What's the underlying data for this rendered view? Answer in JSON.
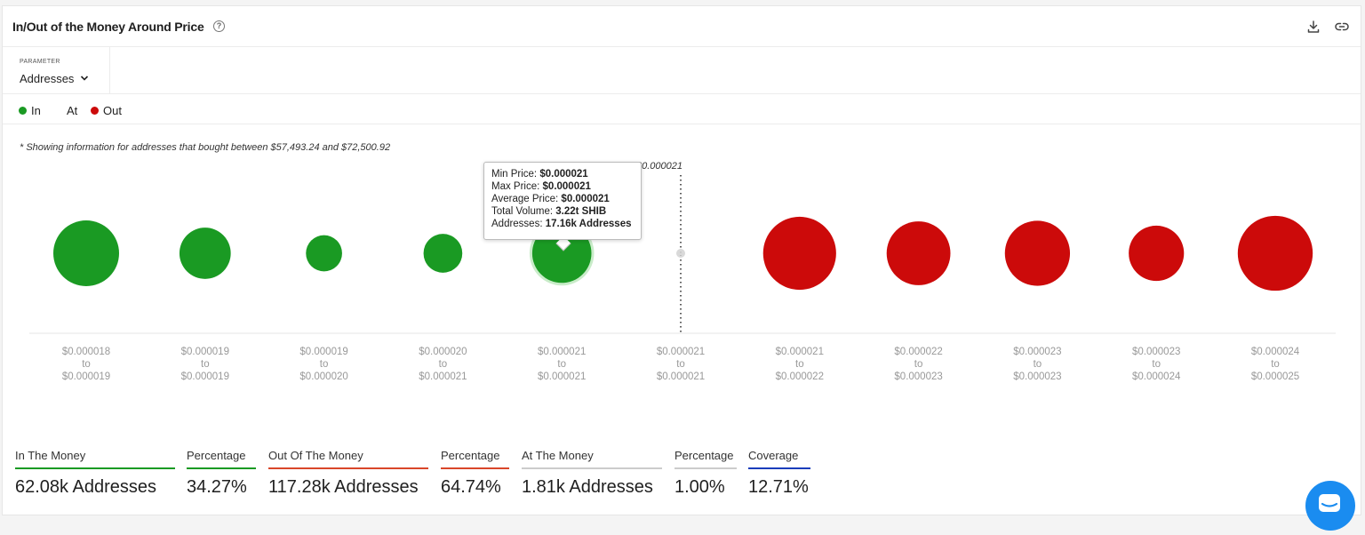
{
  "header": {
    "title": "In/Out of the Money Around Price",
    "help_icon": "?"
  },
  "parameter": {
    "label": "PARAMETER",
    "value": "Addresses"
  },
  "legend": [
    {
      "label": "In",
      "color": "#1a9a23"
    },
    {
      "label": "At",
      "color": ""
    },
    {
      "label": "Out",
      "color": "#cc0a0a"
    }
  ],
  "note": "* Showing information for addresses that bought between $57,493.24 and $72,500.92",
  "current_price_label": "$0.000021",
  "tooltip": {
    "min_label": "Min Price:",
    "min_value": "$0.000021",
    "max_label": "Max Price:",
    "max_value": "$0.000021",
    "avg_label": "Average Price:",
    "avg_value": "$0.000021",
    "vol_label": "Total Volume:",
    "vol_value": "3.22t SHIB",
    "addr_label": "Addresses:",
    "addr_value": "17.16k Addresses"
  },
  "chart_data": {
    "type": "bubble",
    "title": "In/Out of the Money Around Price",
    "parameter": "Addresses",
    "current_price": "$0.000021",
    "buckets": [
      {
        "from": "$0.000018",
        "to": "$0.000019",
        "status": "in",
        "relative_size": 1.0
      },
      {
        "from": "$0.000019",
        "to": "$0.000019",
        "status": "in",
        "relative_size": 0.78
      },
      {
        "from": "$0.000019",
        "to": "$0.000020",
        "status": "in",
        "relative_size": 0.55
      },
      {
        "from": "$0.000020",
        "to": "$0.000021",
        "status": "in",
        "relative_size": 0.59
      },
      {
        "from": "$0.000021",
        "to": "$0.000021",
        "status": "in",
        "relative_size": 0.9,
        "addresses": "17.16k",
        "volume": "3.22t SHIB",
        "highlighted": true
      },
      {
        "from": "$0.000021",
        "to": "$0.000021",
        "status": "at",
        "relative_size": 0.13
      },
      {
        "from": "$0.000021",
        "to": "$0.000022",
        "status": "out",
        "relative_size": 1.11
      },
      {
        "from": "$0.000022",
        "to": "$0.000023",
        "status": "out",
        "relative_size": 0.97
      },
      {
        "from": "$0.000023",
        "to": "$0.000023",
        "status": "out",
        "relative_size": 0.99
      },
      {
        "from": "$0.000023",
        "to": "$0.000024",
        "status": "out",
        "relative_size": 0.84
      },
      {
        "from": "$0.000024",
        "to": "$0.000025",
        "status": "out",
        "relative_size": 1.14
      }
    ],
    "connector": "to",
    "colors": {
      "in": "#1a9a23",
      "out": "#cc0a0a",
      "at": "#d9d9d9"
    }
  },
  "stats": [
    {
      "label": "In The Money",
      "value": "62.08k Addresses",
      "color": "#1a9a23"
    },
    {
      "label": "Percentage",
      "value": "34.27%",
      "color": "#1a9a23"
    },
    {
      "label": "Out Of The Money",
      "value": "117.28k Addresses",
      "color": "#d9462a"
    },
    {
      "label": "Percentage",
      "value": "64.74%",
      "color": "#d9462a"
    },
    {
      "label": "At The Money",
      "value": "1.81k Addresses",
      "color": "#cccccc"
    },
    {
      "label": "Percentage",
      "value": "1.00%",
      "color": "#cccccc"
    },
    {
      "label": "Coverage",
      "value": "12.71%",
      "color": "#1a3dbb"
    }
  ]
}
